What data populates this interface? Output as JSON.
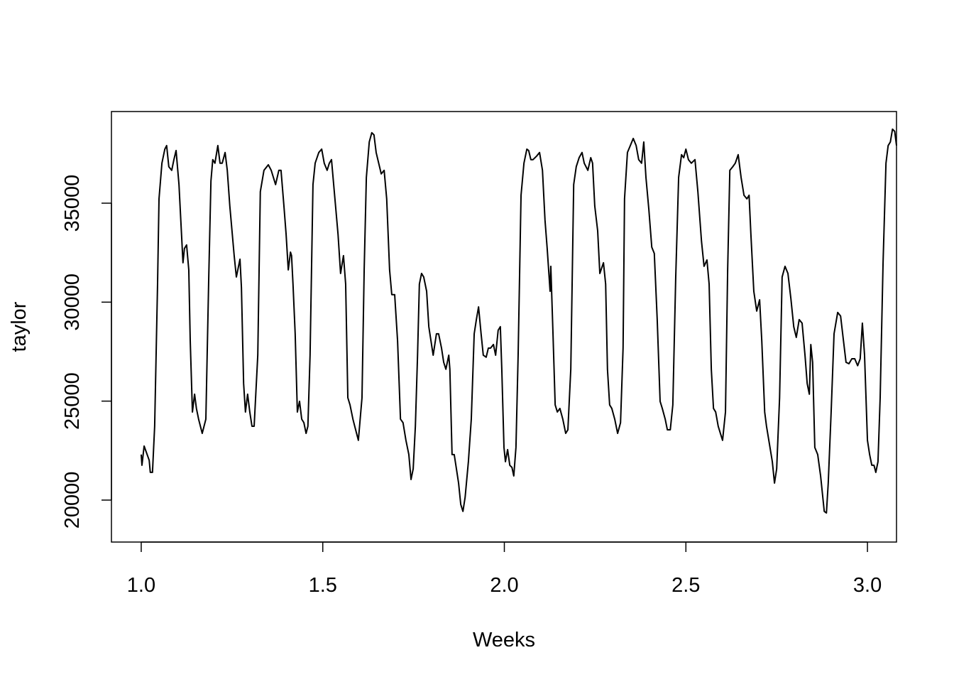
{
  "chart_data": {
    "type": "line",
    "x_label": "Weeks",
    "y_label": "taylor",
    "xlim": [
      0.918,
      3.08
    ],
    "ylim": [
      17880,
      39630
    ],
    "xticks": [
      {
        "value": 1,
        "label": "1.0"
      },
      {
        "value": 1.5,
        "label": "1.5"
      },
      {
        "value": 2,
        "label": "2.0"
      },
      {
        "value": 2.5,
        "label": "2.5"
      },
      {
        "value": 3,
        "label": "3.0"
      }
    ],
    "yticks": [
      20000,
      25000,
      30000,
      35000
    ],
    "x": [
      1.0,
      1.002,
      1.008,
      1.022,
      1.025,
      1.031,
      1.037,
      1.045,
      1.049,
      1.057,
      1.065,
      1.07,
      1.076,
      1.084,
      1.09,
      1.096,
      1.104,
      1.109,
      1.115,
      1.119,
      1.125,
      1.131,
      1.135,
      1.141,
      1.147,
      1.152,
      1.158,
      1.168,
      1.178,
      1.186,
      1.192,
      1.197,
      1.203,
      1.211,
      1.217,
      1.223,
      1.231,
      1.237,
      1.244,
      1.256,
      1.262,
      1.272,
      1.276,
      1.282,
      1.287,
      1.293,
      1.299,
      1.305,
      1.311,
      1.321,
      1.328,
      1.338,
      1.35,
      1.358,
      1.37,
      1.379,
      1.385,
      1.393,
      1.399,
      1.405,
      1.411,
      1.414,
      1.418,
      1.424,
      1.43,
      1.436,
      1.442,
      1.448,
      1.454,
      1.459,
      1.465,
      1.473,
      1.479,
      1.489,
      1.497,
      1.504,
      1.512,
      1.518,
      1.524,
      1.53,
      1.542,
      1.549,
      1.557,
      1.563,
      1.569,
      1.575,
      1.583,
      1.588,
      1.598,
      1.608,
      1.614,
      1.62,
      1.628,
      1.635,
      1.641,
      1.647,
      1.661,
      1.669,
      1.676,
      1.684,
      1.69,
      1.698,
      1.706,
      1.714,
      1.721,
      1.729,
      1.737,
      1.743,
      1.749,
      1.755,
      1.761,
      1.766,
      1.772,
      1.778,
      1.786,
      1.792,
      1.804,
      1.813,
      1.819,
      1.827,
      1.833,
      1.839,
      1.847,
      1.85,
      1.856,
      1.862,
      1.868,
      1.874,
      1.88,
      1.886,
      1.892,
      1.901,
      1.909,
      1.917,
      1.923,
      1.929,
      1.936,
      1.942,
      1.95,
      1.956,
      1.962,
      1.97,
      1.976,
      1.983,
      1.989,
      1.993,
      1.999,
      2.003,
      2.009,
      2.015,
      2.021,
      2.026,
      2.032,
      2.038,
      2.046,
      2.054,
      2.062,
      2.067,
      2.073,
      2.079,
      2.089,
      2.097,
      2.105,
      2.112,
      2.118,
      2.124,
      2.126,
      2.128,
      2.134,
      2.14,
      2.146,
      2.153,
      2.161,
      2.169,
      2.175,
      2.183,
      2.191,
      2.198,
      2.206,
      2.214,
      2.22,
      2.23,
      2.238,
      2.243,
      2.249,
      2.257,
      2.263,
      2.273,
      2.279,
      2.284,
      2.29,
      2.296,
      2.304,
      2.312,
      2.32,
      2.327,
      2.331,
      2.339,
      2.347,
      2.355,
      2.363,
      2.37,
      2.378,
      2.384,
      2.39,
      2.398,
      2.406,
      2.413,
      2.421,
      2.429,
      2.435,
      2.443,
      2.449,
      2.457,
      2.464,
      2.472,
      2.48,
      2.488,
      2.494,
      2.5,
      2.507,
      2.515,
      2.525,
      2.533,
      2.543,
      2.55,
      2.558,
      2.564,
      2.57,
      2.576,
      2.582,
      2.589,
      2.595,
      2.601,
      2.609,
      2.615,
      2.621,
      2.629,
      2.636,
      2.644,
      2.652,
      2.66,
      2.668,
      2.674,
      2.679,
      2.687,
      2.695,
      2.703,
      2.709,
      2.717,
      2.722,
      2.73,
      2.738,
      2.744,
      2.75,
      2.758,
      2.765,
      2.773,
      2.781,
      2.789,
      2.797,
      2.804,
      2.812,
      2.82,
      2.828,
      2.834,
      2.84,
      2.844,
      2.849,
      2.855,
      2.863,
      2.871,
      2.881,
      2.887,
      2.892,
      2.9,
      2.908,
      2.918,
      2.926,
      2.934,
      2.941,
      2.949,
      2.957,
      2.965,
      2.973,
      2.98,
      2.986,
      2.992,
      3.0,
      3.006,
      3.012,
      3.018,
      3.023,
      3.029,
      3.035,
      3.043,
      3.051,
      3.057,
      3.063,
      3.069,
      3.075,
      3.08
    ],
    "series": [
      {
        "color": "#000000",
        "values": [
          22300,
          21760,
          22730,
          22010,
          21400,
          21400,
          23730,
          30910,
          35220,
          37020,
          37730,
          37910,
          36840,
          36660,
          37200,
          37660,
          35940,
          34140,
          31990,
          32710,
          32890,
          31630,
          28040,
          24450,
          25350,
          24630,
          24090,
          23370,
          24090,
          31270,
          36120,
          37200,
          37020,
          37910,
          37020,
          37020,
          37560,
          36660,
          34860,
          32350,
          31270,
          32170,
          30730,
          25890,
          24450,
          25350,
          24450,
          23730,
          23730,
          27320,
          35580,
          36660,
          36940,
          36660,
          35940,
          36660,
          36660,
          34860,
          33430,
          31630,
          32530,
          32350,
          30910,
          28400,
          24450,
          24990,
          24090,
          23910,
          23370,
          23730,
          27320,
          35940,
          37020,
          37560,
          37730,
          37020,
          36660,
          37020,
          37200,
          35940,
          33430,
          31450,
          32350,
          30910,
          25170,
          24810,
          24090,
          23730,
          23020,
          25170,
          31630,
          36300,
          38090,
          38560,
          38450,
          37560,
          36480,
          36660,
          35220,
          31630,
          30380,
          30380,
          28040,
          24090,
          23910,
          23020,
          22300,
          21040,
          21580,
          23730,
          27320,
          30910,
          31450,
          31270,
          30550,
          28760,
          27320,
          28400,
          28400,
          27680,
          26960,
          26610,
          27320,
          26610,
          22300,
          22300,
          21580,
          20860,
          19780,
          19430,
          20140,
          21940,
          24090,
          28400,
          29120,
          29760,
          28400,
          27320,
          27220,
          27680,
          27680,
          27860,
          27320,
          28580,
          28760,
          26610,
          22660,
          21940,
          22550,
          21760,
          21650,
          21220,
          22660,
          27320,
          35400,
          37020,
          37730,
          37660,
          37200,
          37200,
          37380,
          37560,
          36660,
          34140,
          32710,
          31090,
          30550,
          31810,
          28400,
          24810,
          24450,
          24630,
          24090,
          23370,
          23550,
          26610,
          35940,
          36840,
          37300,
          37560,
          37020,
          36660,
          37300,
          37020,
          34860,
          33610,
          31450,
          31990,
          30910,
          26610,
          24810,
          24630,
          24090,
          23370,
          23910,
          27680,
          35220,
          37560,
          37910,
          38270,
          37910,
          37200,
          37020,
          38090,
          36300,
          34680,
          32780,
          32460,
          29120,
          24990,
          24630,
          24090,
          23550,
          23550,
          24810,
          31270,
          36300,
          37450,
          37300,
          37730,
          37200,
          37020,
          37200,
          35580,
          33070,
          31810,
          32130,
          30910,
          26610,
          24630,
          24450,
          23730,
          23370,
          23020,
          24450,
          31630,
          36660,
          36840,
          37020,
          37450,
          36300,
          35400,
          35220,
          35400,
          33430,
          30550,
          29550,
          30120,
          28040,
          24450,
          23730,
          22840,
          21940,
          20860,
          21580,
          25170,
          31270,
          31810,
          31450,
          30200,
          28760,
          28220,
          29120,
          28940,
          27320,
          25890,
          25350,
          27860,
          26960,
          22660,
          22300,
          21220,
          19430,
          19350,
          20860,
          24450,
          28400,
          29480,
          29300,
          28040,
          26960,
          26890,
          27140,
          27140,
          26790,
          27140,
          28940,
          27320,
          23020,
          22300,
          21760,
          21760,
          21400,
          21940,
          25170,
          31990,
          37020,
          37910,
          38090,
          38740,
          38630,
          37910
        ]
      }
    ]
  }
}
